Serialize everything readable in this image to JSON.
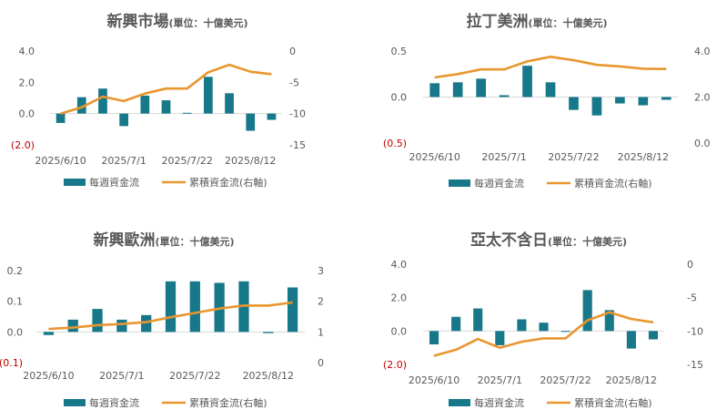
{
  "legend": {
    "bar_label": "每週資金流",
    "line_label": "累積資金流(右軸)"
  },
  "colors": {
    "bar": "#17788a",
    "line": "#e8962e",
    "axis": "#d9d9d9",
    "text": "#595959",
    "title": "#595959",
    "negative": "#c00000"
  },
  "chart_data": [
    {
      "type": "bar",
      "title": "新興市場",
      "unit": "(單位：十億美元)",
      "x_tick_labels": [
        "2025/6/10",
        "2025/7/1",
        "2025/7/22",
        "2025/8/12"
      ],
      "left_axis": {
        "ylim": [
          -2.0,
          4.0
        ],
        "ticks": [
          "4.0",
          "2.0",
          "0.0",
          "(2.0)"
        ],
        "tick_values": [
          4,
          2,
          0,
          -2
        ]
      },
      "right_axis": {
        "ylim": [
          -15,
          0
        ],
        "ticks": [
          "0",
          "-5",
          "-10",
          "-15"
        ],
        "tick_values": [
          0,
          -5,
          -10,
          -15
        ]
      },
      "series": [
        {
          "name": "每週資金流",
          "axis": "left",
          "values": [
            -0.6,
            1.05,
            1.6,
            -0.8,
            1.15,
            0.85,
            0.05,
            2.35,
            1.3,
            -1.1,
            -0.4
          ]
        },
        {
          "name": "累積資金流(右軸)",
          "axis": "right",
          "values": [
            -10,
            -9,
            -7.3,
            -8,
            -6.8,
            -6,
            -6,
            -3.4,
            -2.2,
            -3.3,
            -3.7
          ]
        }
      ]
    },
    {
      "type": "bar",
      "title": "拉丁美洲",
      "unit": "(單位：十億美元)",
      "x_tick_labels": [
        "2025/6/10",
        "2025/7/1",
        "2025/7/22",
        "2025/8/12"
      ],
      "left_axis": {
        "ylim": [
          -0.5,
          0.5
        ],
        "ticks": [
          "0.5",
          "0.0",
          "(0.5)"
        ],
        "tick_values": [
          0.5,
          0,
          -0.5
        ]
      },
      "right_axis": {
        "ylim": [
          0,
          4
        ],
        "ticks": [
          "4.0",
          "2.0",
          "0.0"
        ],
        "tick_values": [
          4,
          2,
          0
        ]
      },
      "series": [
        {
          "name": "每週資金流",
          "axis": "left",
          "values": [
            0.15,
            0.16,
            0.2,
            0.02,
            0.34,
            0.16,
            -0.14,
            -0.2,
            -0.07,
            -0.09,
            -0.03
          ]
        },
        {
          "name": "累積資金流(右軸)",
          "axis": "right",
          "values": [
            2.85,
            3.0,
            3.2,
            3.2,
            3.55,
            3.75,
            3.6,
            3.4,
            3.33,
            3.23,
            3.22
          ]
        }
      ]
    },
    {
      "type": "bar",
      "title": "新興歐洲",
      "unit": "(單位：十億美元)",
      "x_tick_labels": [
        "2025/6/10",
        "2025/7/1",
        "2025/7/22",
        "2025/8/12"
      ],
      "left_axis": {
        "ylim": [
          -0.1,
          0.2
        ],
        "ticks": [
          "0.2",
          "0.1",
          "0.0",
          "(0.1)"
        ],
        "tick_values": [
          0.2,
          0.1,
          0,
          -0.1
        ]
      },
      "right_axis": {
        "ylim": [
          0,
          3
        ],
        "ticks": [
          "3",
          "2",
          "1",
          "0"
        ],
        "tick_values": [
          3,
          2,
          1,
          0
        ]
      },
      "series": [
        {
          "name": "每週資金流",
          "axis": "left",
          "values": [
            -0.01,
            0.04,
            0.075,
            0.04,
            0.055,
            0.165,
            0.165,
            0.16,
            0.165,
            -0.004,
            0.145
          ]
        },
        {
          "name": "累積資金流(右軸)",
          "axis": "right",
          "values": [
            1.1,
            1.14,
            1.22,
            1.26,
            1.32,
            1.48,
            1.62,
            1.76,
            1.86,
            1.86,
            1.96
          ]
        }
      ]
    },
    {
      "type": "bar",
      "title": "亞太不含日",
      "unit": "(單位：十億美元)",
      "x_tick_labels": [
        "2025/6/10",
        "2025/7/1",
        "2025/7/22",
        "2025/8/12"
      ],
      "left_axis": {
        "ylim": [
          -2.0,
          4.0
        ],
        "ticks": [
          "4.0",
          "2.0",
          "0.0",
          "(2.0)"
        ],
        "tick_values": [
          4,
          2,
          0,
          -2
        ]
      },
      "right_axis": {
        "ylim": [
          -15,
          0
        ],
        "ticks": [
          "0",
          "-5",
          "-10",
          "-15"
        ],
        "tick_values": [
          0,
          -5,
          -10,
          -15
        ]
      },
      "series": [
        {
          "name": "每週資金流",
          "axis": "left",
          "values": [
            -0.8,
            0.85,
            1.35,
            -0.85,
            0.7,
            0.5,
            0.0,
            2.45,
            1.25,
            -1.05,
            -0.5
          ]
        },
        {
          "name": "累積資金流(右軸)",
          "axis": "right",
          "values": [
            -13.7,
            -12.8,
            -11.2,
            -12.5,
            -11.6,
            -11.1,
            -11.1,
            -8.4,
            -7.2,
            -8.2,
            -8.7
          ]
        }
      ]
    }
  ]
}
